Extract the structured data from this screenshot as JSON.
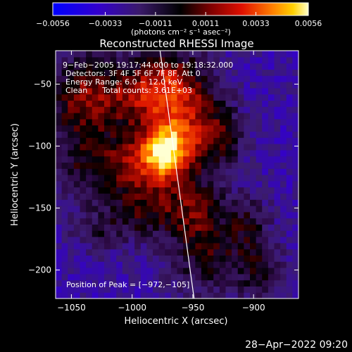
{
  "chart_data": {
    "type": "heatmap",
    "title": "Reconstructed RHESSI Image",
    "xlabel": "Heliocentric X (arcsec)",
    "ylabel": "Heliocentric Y (arcsec)",
    "xlim": [
      -1063,
      -863
    ],
    "ylim": [
      -223,
      -23
    ],
    "x_ticks": [
      -1050,
      -1000,
      -950,
      -900
    ],
    "y_ticks": [
      -50,
      -100,
      -150,
      -200
    ],
    "x_tick_labels": [
      "−1050",
      "−1000",
      "−950",
      "−900"
    ],
    "y_tick_labels": [
      "−50",
      "−100",
      "−150",
      "−200"
    ],
    "peak": [
      -972,
      -105
    ],
    "limb_line": [
      [
        -977,
        -23
      ],
      [
        -949,
        -223
      ]
    ],
    "colorbar": {
      "min": -0.0056,
      "max": 0.0056,
      "tick_values": [
        -0.0056,
        -0.0033,
        -0.0011,
        0.0011,
        0.0033,
        0.0056
      ],
      "tick_labels": [
        "−0.0056",
        "−0.0033",
        "−0.0011",
        "0.0011",
        "0.0033",
        "0.0056"
      ],
      "unit_label": "(photons cm⁻² s⁻¹ asec⁻²)"
    },
    "annotations": [
      "9−Feb−2005 19:17:44.000 to 19:18:32.000",
      "Detectors: 3F 4F 5F 6F 7F 8F, Att 0",
      "Energy Range: 6.0 − 12.0 keV",
      "Clean      Total counts: 3.61E+03"
    ],
    "peak_label": "Position of Peak = [−972,−105]",
    "sources": [
      {
        "x": -973,
        "y": -105,
        "sx": 14,
        "sy": 16,
        "amp": 0.0062
      },
      {
        "x": -1000,
        "y": -112,
        "sx": 18,
        "sy": 16,
        "amp": 0.0032
      },
      {
        "x": -1040,
        "y": -62,
        "sx": 22,
        "sy": 26,
        "amp": 0.0038
      },
      {
        "x": -992,
        "y": -58,
        "sx": 22,
        "sy": 20,
        "amp": 0.0034
      },
      {
        "x": -962,
        "y": -52,
        "sx": 20,
        "sy": 22,
        "amp": 0.0036
      },
      {
        "x": -953,
        "y": -92,
        "sx": 18,
        "sy": 20,
        "amp": 0.003
      },
      {
        "x": -925,
        "y": -92,
        "sx": 14,
        "sy": 22,
        "amp": 0.0022
      },
      {
        "x": -988,
        "y": -150,
        "sx": 26,
        "sy": 18,
        "amp": 0.003
      },
      {
        "x": -946,
        "y": -150,
        "sx": 16,
        "sy": 18,
        "amp": 0.0024
      },
      {
        "x": -1040,
        "y": -118,
        "sx": 18,
        "sy": 18,
        "amp": 0.002
      },
      {
        "x": -905,
        "y": -162,
        "sx": 14,
        "sy": 18,
        "amp": 0.002
      },
      {
        "x": -938,
        "y": -192,
        "sx": 22,
        "sy": 22,
        "amp": 0.0026
      },
      {
        "x": -893,
        "y": -202,
        "sx": 14,
        "sy": 18,
        "amp": 0.002
      },
      {
        "x": -1030,
        "y": -170,
        "sx": 16,
        "sy": 12,
        "amp": 0.0014
      }
    ],
    "background_level": -0.0027
  },
  "timestamp": "28−Apr−2022 09:20"
}
